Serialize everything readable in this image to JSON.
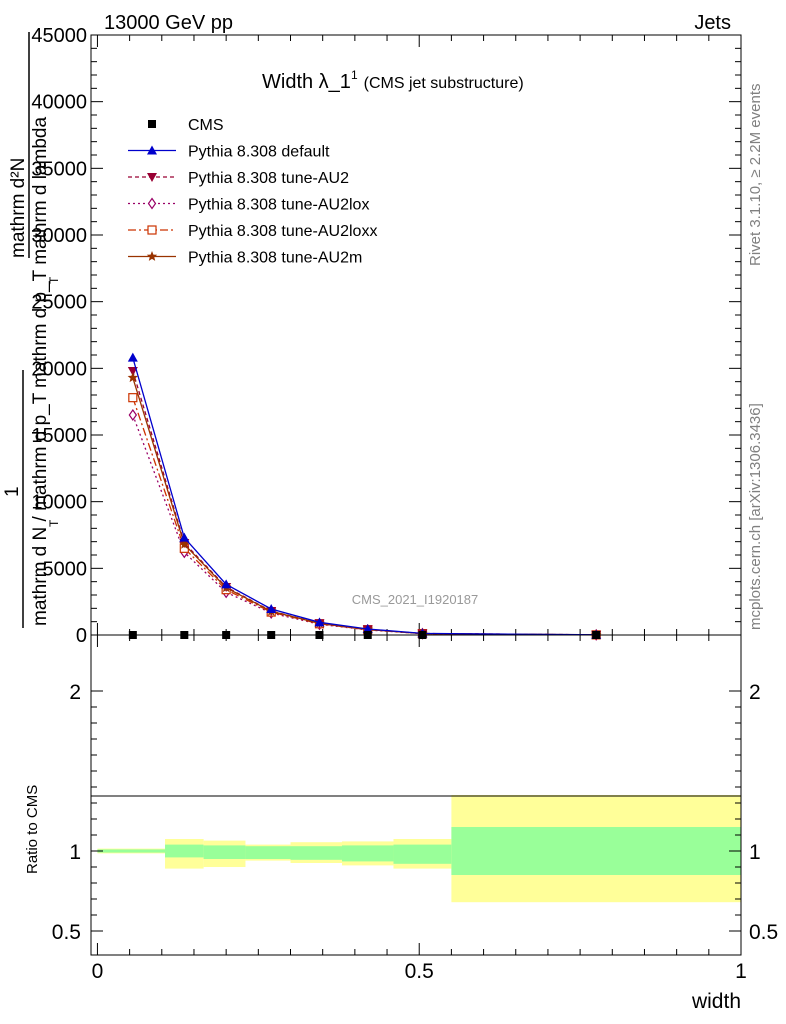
{
  "header": {
    "left": "13000 GeV pp",
    "right": "Jets"
  },
  "side_text": {
    "rivet": "Rivet 3.1.10, ≥ 2.2M events",
    "mcplots": "mcplots.cern.ch [arXiv:1306.3436]"
  },
  "watermark": "CMS_2021_I1920187",
  "chart_data": [
    {
      "type": "line",
      "panel": "main",
      "title_main": "Width λ_1",
      "title_sup": "1",
      "title_sub": "(CMS jet substructure)",
      "ylabel_lines": [
        "mathrm d²N",
        "mathrm d p_T mathrm d lambda",
        "1",
        "mathrm d N / mathrm d p_T"
      ],
      "ylabel_sub": [
        "T",
        "T"
      ],
      "ylim": [
        0,
        45000
      ],
      "xlim": [
        -0.01,
        1.0
      ],
      "yticks": [
        0,
        5000,
        10000,
        15000,
        20000,
        25000,
        30000,
        35000,
        40000,
        45000
      ],
      "ytick_labels": [
        "0",
        "5000",
        "10000",
        "15000",
        "20000",
        "25000",
        "30000",
        "35000",
        "40000",
        "45000"
      ],
      "x": [
        0.055,
        0.135,
        0.2,
        0.27,
        0.345,
        0.42,
        0.505,
        0.775
      ],
      "series": [
        {
          "name": "CMS",
          "color": "#000000",
          "marker": "square",
          "dash": "",
          "values": [
            0,
            0,
            0,
            0,
            0,
            0,
            0,
            0
          ]
        },
        {
          "name": "Pythia 8.308 default",
          "color": "#0000cc",
          "marker": "triangle",
          "dash": "",
          "values": [
            20800,
            7300,
            3800,
            1950,
            950,
            450,
            120,
            15
          ]
        },
        {
          "name": "Pythia 8.308 tune-AU2",
          "color": "#990033",
          "marker": "triangle-down",
          "dash": "4,3",
          "values": [
            19800,
            6900,
            3600,
            1800,
            880,
            420,
            110,
            12
          ]
        },
        {
          "name": "Pythia 8.308 tune-AU2lox",
          "color": "#990066",
          "marker": "diamond",
          "dash": "2,3",
          "values": [
            16500,
            6200,
            3200,
            1650,
            800,
            380,
            100,
            10
          ]
        },
        {
          "name": "Pythia 8.308 tune-AU2loxx",
          "color": "#cc3300",
          "marker": "open-square",
          "dash": "8,3,2,3",
          "values": [
            17800,
            6500,
            3400,
            1720,
            840,
            400,
            105,
            11
          ]
        },
        {
          "name": "Pythia 8.308 tune-AU2m",
          "color": "#993300",
          "marker": "star",
          "dash": "",
          "values": [
            19300,
            6800,
            3550,
            1780,
            870,
            410,
            108,
            12
          ]
        }
      ]
    },
    {
      "type": "area",
      "panel": "ratio",
      "ylabel": "Ratio to CMS",
      "xlabel": "width",
      "ylim": [
        0.35,
        2.35
      ],
      "yticks": [
        0.5,
        1,
        2
      ],
      "ytick_labels": [
        "0.5",
        "1",
        "2"
      ],
      "xticks": [
        0,
        0.5,
        1
      ],
      "xtick_labels": [
        "0",
        "0.5",
        "1"
      ],
      "bins": [
        {
          "x0": 0.0,
          "x1": 0.105,
          "stat": [
            0.99,
            1.01
          ],
          "total": [
            0.985,
            1.015
          ]
        },
        {
          "x0": 0.105,
          "x1": 0.165,
          "stat": [
            0.96,
            1.04
          ],
          "total": [
            0.89,
            1.075
          ]
        },
        {
          "x0": 0.165,
          "x1": 0.23,
          "stat": [
            0.95,
            1.035
          ],
          "total": [
            0.9,
            1.065
          ]
        },
        {
          "x0": 0.23,
          "x1": 0.3,
          "stat": [
            0.95,
            1.03
          ],
          "total": [
            0.94,
            1.04
          ]
        },
        {
          "x0": 0.3,
          "x1": 0.38,
          "stat": [
            0.945,
            1.03
          ],
          "total": [
            0.925,
            1.055
          ]
        },
        {
          "x0": 0.38,
          "x1": 0.46,
          "stat": [
            0.935,
            1.035
          ],
          "total": [
            0.91,
            1.06
          ]
        },
        {
          "x0": 0.46,
          "x1": 0.55,
          "stat": [
            0.92,
            1.04
          ],
          "total": [
            0.89,
            1.075
          ]
        },
        {
          "x0": 0.55,
          "x1": 1.0,
          "stat": [
            0.85,
            1.15
          ],
          "total": [
            0.68,
            1.35
          ]
        }
      ],
      "colors": {
        "stat": "#99ff99",
        "total": "#ffff99"
      }
    }
  ]
}
